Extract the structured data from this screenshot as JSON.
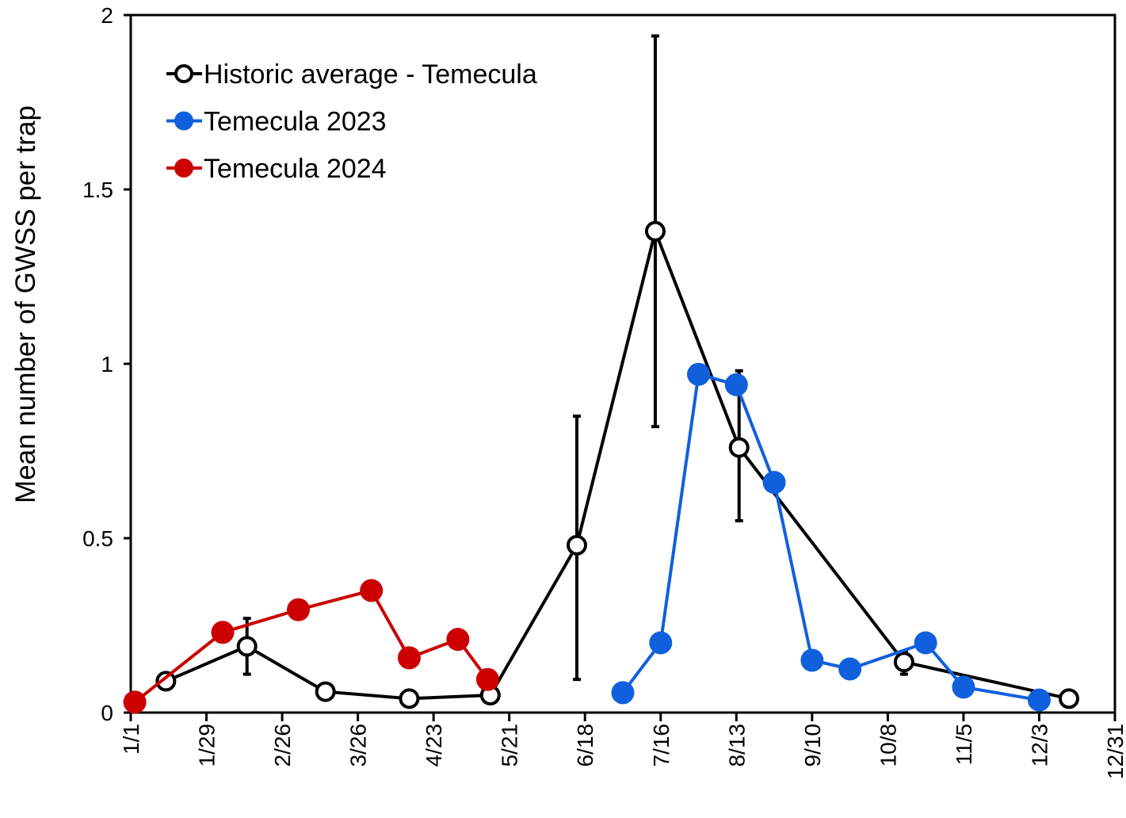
{
  "chart_data": {
    "type": "line",
    "title": "",
    "xlabel": "",
    "ylabel": "Mean number of GWSS per trap",
    "x_unit": "day of year (0 = 1/1)",
    "xlim": [
      0,
      364
    ],
    "ylim": [
      0,
      2
    ],
    "x_ticks": [
      0,
      28,
      56,
      84,
      112,
      140,
      168,
      196,
      224,
      252,
      280,
      308,
      336,
      364
    ],
    "x_tick_labels": [
      "1/1",
      "1/29",
      "2/26",
      "3/26",
      "4/23",
      "5/21",
      "6/18",
      "7/16",
      "8/13",
      "9/10",
      "10/8",
      "11/5",
      "12/3",
      "12/31"
    ],
    "y_ticks": [
      0,
      0.5,
      1,
      1.5,
      2
    ],
    "y_tick_labels": [
      "0",
      "0.5",
      "1",
      "1.5",
      "2"
    ],
    "grid": false,
    "legend_position": "top-left",
    "series": [
      {
        "name": "Historic average - Temecula",
        "color": "#000000",
        "marker": "open-circle",
        "x": [
          13,
          43,
          72,
          103,
          133,
          165,
          194,
          225,
          286,
          347
        ],
        "y": [
          0.09,
          0.19,
          0.06,
          0.04,
          0.05,
          0.48,
          1.38,
          0.76,
          0.145,
          0.04
        ],
        "error_low": [
          null,
          0.11,
          null,
          null,
          null,
          0.095,
          0.82,
          0.55,
          0.11,
          null
        ],
        "error_high": [
          null,
          0.27,
          null,
          null,
          null,
          0.85,
          1.94,
          0.98,
          0.175,
          null
        ]
      },
      {
        "name": "Temecula 2023",
        "color": "#1060DD",
        "marker": "filled-circle",
        "x": [
          182,
          196,
          210,
          224,
          238,
          252,
          266,
          294,
          308,
          336
        ],
        "y": [
          0.057,
          0.2,
          0.97,
          0.94,
          0.66,
          0.15,
          0.125,
          0.2,
          0.073,
          0.036
        ]
      },
      {
        "name": "Temecula 2024",
        "color": "#CC0000",
        "marker": "filled-circle",
        "x": [
          1.5,
          34,
          62,
          89,
          103,
          121,
          132
        ],
        "y": [
          0.03,
          0.23,
          0.295,
          0.35,
          0.157,
          0.21,
          0.095
        ]
      }
    ]
  }
}
